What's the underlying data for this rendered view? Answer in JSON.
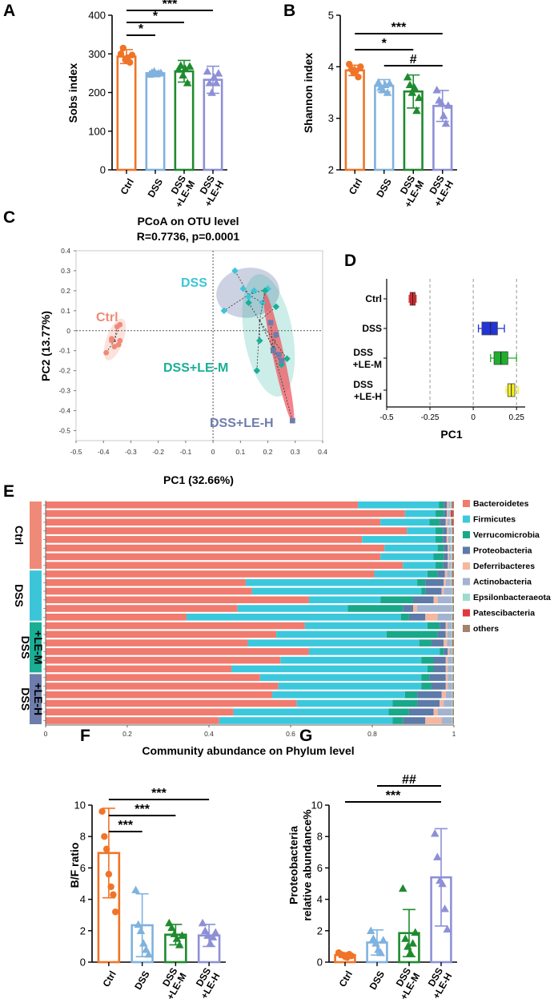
{
  "colors": {
    "ctrl": "#F07427",
    "dss": "#7FB2DE",
    "lem": "#1E8B2E",
    "leh": "#8E90D6",
    "ctrl_pcoa": "#F08A78",
    "dss_pcoa": "#3CC5D8",
    "lem_pcoa": "#1AAE96",
    "leh_pcoa": "#6E7DAC",
    "d_ctrl": "#E8242A",
    "d_dss": "#2233D8",
    "d_lem": "#1FAF2D",
    "d_leh": "#F3F01E"
  },
  "panel_labels": [
    "A",
    "B",
    "C",
    "D",
    "E",
    "F",
    "G"
  ],
  "groups": [
    "Ctrl",
    "DSS",
    "DSS\n+LE-M",
    "DSS\n+LE-H"
  ],
  "chart_data": [
    {
      "id": "A",
      "type": "bar",
      "ylabel": "Sobs index",
      "ylim": [
        0,
        400
      ],
      "yticks": [
        0,
        100,
        200,
        300,
        400
      ],
      "categories": [
        "Ctrl",
        "DSS",
        "DSS\n+LE-M",
        "DSS\n+LE-H"
      ],
      "means": [
        293,
        250,
        255,
        233
      ],
      "sd": [
        18,
        5,
        28,
        35
      ],
      "points": [
        [
          300,
          315,
          285,
          290,
          278,
          297
        ],
        [
          247,
          252,
          255,
          248,
          250,
          251
        ],
        [
          260,
          270,
          245,
          262,
          225,
          268
        ],
        [
          255,
          225,
          200,
          240,
          225,
          250
        ]
      ],
      "markers": [
        "circle",
        "triangle",
        "triangle",
        "triangle"
      ],
      "significance": [
        {
          "from": 0,
          "to": 1,
          "label": "*"
        },
        {
          "from": 0,
          "to": 2,
          "label": "*"
        },
        {
          "from": 0,
          "to": 3,
          "label": "***"
        }
      ]
    },
    {
      "id": "B",
      "type": "bar",
      "ylabel": "Shannon index",
      "ylim": [
        2,
        5
      ],
      "yticks": [
        2,
        3,
        4,
        5
      ],
      "categories": [
        "Ctrl",
        "DSS",
        "DSS\n+LE-M",
        "DSS\n+LE-H"
      ],
      "means": [
        3.93,
        3.63,
        3.52,
        3.24
      ],
      "sd": [
        0.1,
        0.12,
        0.32,
        0.3
      ],
      "points": [
        [
          4.05,
          3.95,
          3.88,
          3.92,
          3.8,
          4.0
        ],
        [
          3.7,
          3.6,
          3.55,
          3.65,
          3.5,
          3.68
        ],
        [
          3.8,
          3.65,
          3.5,
          3.6,
          3.15,
          3.4
        ],
        [
          3.55,
          3.35,
          3.3,
          3.05,
          2.9,
          3.25
        ]
      ],
      "markers": [
        "circle",
        "triangle",
        "triangle",
        "triangle"
      ],
      "significance": [
        {
          "from": 0,
          "to": 2,
          "label": "*"
        },
        {
          "from": 0,
          "to": 3,
          "label": "***"
        },
        {
          "from": 1,
          "to": 3,
          "label": "#"
        }
      ]
    },
    {
      "id": "C",
      "type": "scatter",
      "title": "PCoA on OTU level",
      "subtitle": "R=0.7736, p=0.0001",
      "xlabel": "PC1 (32.66%)",
      "ylabel": "PC2 (13.77%)",
      "xlim": [
        -0.5,
        0.4
      ],
      "ylim": [
        -0.55,
        0.4
      ],
      "xticks": [
        -0.5,
        -0.4,
        -0.3,
        -0.2,
        -0.1,
        0,
        0.1,
        0.2,
        0.3,
        0.4
      ],
      "yticks": [
        -0.5,
        -0.4,
        -0.3,
        -0.2,
        -0.1,
        0,
        0.1,
        0.2,
        0.3,
        0.4
      ],
      "series": [
        {
          "name": "Ctrl",
          "label": "Ctrl",
          "marker": "circle",
          "centroid": [
            -0.36,
            -0.05
          ],
          "points": [
            [
              -0.35,
              0.02
            ],
            [
              -0.34,
              0.03
            ],
            [
              -0.37,
              -0.04
            ],
            [
              -0.36,
              -0.08
            ],
            [
              -0.39,
              -0.11
            ],
            [
              -0.345,
              -0.07
            ],
            [
              -0.37,
              -0.05
            ],
            [
              -0.34,
              -0.05
            ]
          ]
        },
        {
          "name": "DSS",
          "label": "DSS",
          "marker": "diamond",
          "centroid": [
            0.13,
            0.18
          ],
          "points": [
            [
              0.08,
              0.3
            ],
            [
              0.04,
              0.1
            ],
            [
              0.15,
              0.2
            ],
            [
              0.2,
              0.21
            ],
            [
              0.13,
              0.17
            ],
            [
              0.11,
              0.21
            ],
            [
              0.18,
              0.14
            ]
          ]
        },
        {
          "name": "DSS+LE-M",
          "label": "DSS+LE-M",
          "marker": "diamond",
          "centroid": [
            0.17,
            0.05
          ],
          "points": [
            [
              0.19,
              0.2
            ],
            [
              0.13,
              0.14
            ],
            [
              0.17,
              -0.05
            ],
            [
              0.22,
              -0.09
            ],
            [
              0.25,
              -0.17
            ],
            [
              0.27,
              -0.14
            ],
            [
              0.16,
              -0.2
            ],
            [
              0.23,
              0.12
            ]
          ]
        },
        {
          "name": "DSS+LE-H",
          "label": "DSS+LE-H",
          "marker": "square",
          "centroid": [
            0.22,
            -0.1
          ],
          "points": [
            [
              0.21,
              0.04
            ],
            [
              0.23,
              -0.02
            ],
            [
              0.22,
              -0.1
            ],
            [
              0.24,
              -0.12
            ],
            [
              0.25,
              -0.15
            ],
            [
              0.29,
              -0.45
            ]
          ]
        }
      ]
    },
    {
      "id": "D",
      "type": "boxplot",
      "xlabel": "PC1",
      "xlim": [
        -0.5,
        0.3
      ],
      "xticks": [
        -0.5,
        -0.25,
        0,
        0.25
      ],
      "categories": [
        "Ctrl",
        "DSS\n+LE-M",
        "DSS\n+LE-H",
        "DSS"
      ],
      "order": [
        "Ctrl",
        "DSS",
        "DSS\n+LE-M",
        "DSS\n+LE-H"
      ],
      "boxes": [
        {
          "min": -0.37,
          "q1": -0.365,
          "median": -0.35,
          "q3": -0.335,
          "max": -0.33
        },
        {
          "min": 0.03,
          "q1": 0.05,
          "median": 0.1,
          "q3": 0.14,
          "max": 0.18
        },
        {
          "min": 0.1,
          "q1": 0.12,
          "median": 0.16,
          "q3": 0.2,
          "max": 0.25
        },
        {
          "min": 0.19,
          "q1": 0.2,
          "median": 0.22,
          "q3": 0.24,
          "max": 0.26
        }
      ]
    },
    {
      "id": "E",
      "type": "bar",
      "orientation": "horizontal-stacked",
      "xlabel": "Community abundance on Phylum level",
      "xlim": [
        0,
        1
      ],
      "xticks": [
        0,
        0.2,
        0.4,
        0.6,
        0.8,
        1
      ],
      "group_labels": [
        "Ctrl",
        "DSS",
        "DSS\n+LE-M",
        "DSS\n+LE-H"
      ],
      "group_counts": [
        8,
        6,
        6,
        6
      ],
      "group_colors": [
        "#F08A78",
        "#3CC5D8",
        "#1AAE96",
        "#6E7DAC"
      ],
      "legend": [
        "Bacteroidetes",
        "Firmicutes",
        "Verrucomicrobia",
        "Proteobacteria",
        "Deferribacteres",
        "Actinobacteria",
        "Epsilonbacteraeota",
        "Patescibacteria",
        "others"
      ],
      "legend_colors": [
        "#F07B6E",
        "#3CC8DC",
        "#19A88A",
        "#5D7AA8",
        "#F5B79E",
        "#A3B3D0",
        "#9CDCCF",
        "#E2393C",
        "#A3836B"
      ],
      "rows": [
        [
          0.765,
          0.198,
          0.012,
          0.008,
          0.004,
          0.004,
          0.004,
          0.002,
          0.003
        ],
        [
          0.88,
          0.075,
          0.02,
          0.008,
          0.003,
          0.004,
          0.002,
          0.005,
          0.003
        ],
        [
          0.82,
          0.12,
          0.025,
          0.015,
          0.004,
          0.006,
          0.004,
          0.003,
          0.003
        ],
        [
          0.885,
          0.07,
          0.018,
          0.01,
          0.004,
          0.006,
          0.003,
          0.001,
          0.003
        ],
        [
          0.775,
          0.18,
          0.018,
          0.009,
          0.004,
          0.006,
          0.004,
          0.001,
          0.003
        ],
        [
          0.83,
          0.13,
          0.015,
          0.01,
          0.003,
          0.005,
          0.003,
          0.001,
          0.003
        ],
        [
          0.82,
          0.13,
          0.025,
          0.01,
          0.003,
          0.005,
          0.003,
          0.001,
          0.003
        ],
        [
          0.875,
          0.08,
          0.018,
          0.012,
          0.003,
          0.005,
          0.003,
          0.001,
          0.003
        ],
        [
          0.805,
          0.13,
          0.025,
          0.018,
          0.005,
          0.009,
          0.003,
          0.001,
          0.004
        ],
        [
          0.49,
          0.42,
          0.02,
          0.045,
          0.005,
          0.012,
          0.003,
          0.001,
          0.004
        ],
        [
          0.505,
          0.415,
          0.01,
          0.04,
          0.005,
          0.02,
          0.002,
          0.0,
          0.003
        ],
        [
          0.645,
          0.175,
          0.08,
          0.05,
          0.01,
          0.034,
          0.002,
          0.0,
          0.004
        ],
        [
          0.47,
          0.27,
          0.135,
          0.025,
          0.01,
          0.085,
          0.002,
          0.0,
          0.003
        ],
        [
          0.345,
          0.525,
          0.02,
          0.04,
          0.03,
          0.034,
          0.002,
          0.0,
          0.004
        ],
        [
          0.635,
          0.3,
          0.03,
          0.015,
          0.004,
          0.01,
          0.002,
          0.0,
          0.004
        ],
        [
          0.565,
          0.27,
          0.125,
          0.02,
          0.004,
          0.01,
          0.002,
          0.0,
          0.004
        ],
        [
          0.495,
          0.42,
          0.03,
          0.03,
          0.008,
          0.01,
          0.002,
          0.0,
          0.005
        ],
        [
          0.645,
          0.32,
          0.01,
          0.01,
          0.004,
          0.006,
          0.002,
          0.0,
          0.003
        ],
        [
          0.575,
          0.345,
          0.03,
          0.03,
          0.005,
          0.01,
          0.002,
          0.0,
          0.003
        ],
        [
          0.455,
          0.48,
          0.015,
          0.03,
          0.005,
          0.01,
          0.002,
          0.0,
          0.003
        ],
        [
          0.525,
          0.395,
          0.02,
          0.04,
          0.005,
          0.01,
          0.002,
          0.0,
          0.003
        ],
        [
          0.57,
          0.35,
          0.025,
          0.035,
          0.005,
          0.01,
          0.002,
          0.0,
          0.003
        ],
        [
          0.555,
          0.325,
          0.03,
          0.06,
          0.01,
          0.015,
          0.002,
          0.0,
          0.003
        ],
        [
          0.615,
          0.235,
          0.06,
          0.055,
          0.01,
          0.02,
          0.002,
          0.0,
          0.003
        ],
        [
          0.46,
          0.38,
          0.05,
          0.06,
          0.01,
          0.035,
          0.002,
          0.0,
          0.003
        ],
        [
          0.425,
          0.425,
          0.025,
          0.055,
          0.04,
          0.025,
          0.002,
          0.0,
          0.003
        ]
      ]
    },
    {
      "id": "F",
      "type": "bar",
      "ylabel": "B/F ratio",
      "ylim": [
        0,
        10
      ],
      "yticks": [
        0,
        2,
        4,
        6,
        8,
        10
      ],
      "categories": [
        "Ctrl",
        "DSS",
        "DSS\n+LE-M",
        "DSS\n+LE-H"
      ],
      "means": [
        6.95,
        2.35,
        1.75,
        1.7
      ],
      "sd": [
        2.85,
        2.0,
        0.65,
        0.7
      ],
      "points": [
        [
          9.6,
          8.0,
          7.2,
          5.6,
          4.8,
          4.3,
          3.2
        ],
        [
          4.6,
          2.4,
          2.0,
          1.2,
          0.8,
          0.5
        ],
        [
          2.5,
          2.2,
          1.8,
          1.5,
          1.1,
          1.7
        ],
        [
          2.5,
          2.0,
          1.7,
          1.2,
          1.6,
          1.9
        ]
      ],
      "markers": [
        "circle",
        "triangle",
        "triangle",
        "triangle"
      ],
      "significance": [
        {
          "from": 0,
          "to": 1,
          "label": "***"
        },
        {
          "from": 0,
          "to": 2,
          "label": "***"
        },
        {
          "from": 0,
          "to": 3,
          "label": "***"
        }
      ]
    },
    {
      "id": "G",
      "type": "bar",
      "ylabel": "Proteobacteria\nrelative abundance%",
      "ylim": [
        0,
        10
      ],
      "yticks": [
        0,
        2,
        4,
        6,
        8,
        10
      ],
      "categories": [
        "Ctrl",
        "DSS",
        "DSS\n+LE-M",
        "DSS\n+LE-H"
      ],
      "means": [
        0.45,
        1.25,
        1.85,
        5.4
      ],
      "sd": [
        0.15,
        0.8,
        1.5,
        3.1
      ],
      "points": [
        [
          0.6,
          0.5,
          0.45,
          0.35,
          0.3,
          0.5,
          0.4
        ],
        [
          2.0,
          1.5,
          1.2,
          0.8,
          0.6,
          1.4
        ],
        [
          4.7,
          1.5,
          1.0,
          0.6,
          1.2,
          1.9
        ],
        [
          8.2,
          6.7,
          5.2,
          5.0,
          3.4,
          2.1
        ]
      ],
      "markers": [
        "circle",
        "triangle",
        "triangle",
        "triangle"
      ],
      "significance": [
        {
          "from": 0,
          "to": 3,
          "label": "***"
        },
        {
          "from": 1,
          "to": 3,
          "label": "##"
        }
      ]
    }
  ]
}
